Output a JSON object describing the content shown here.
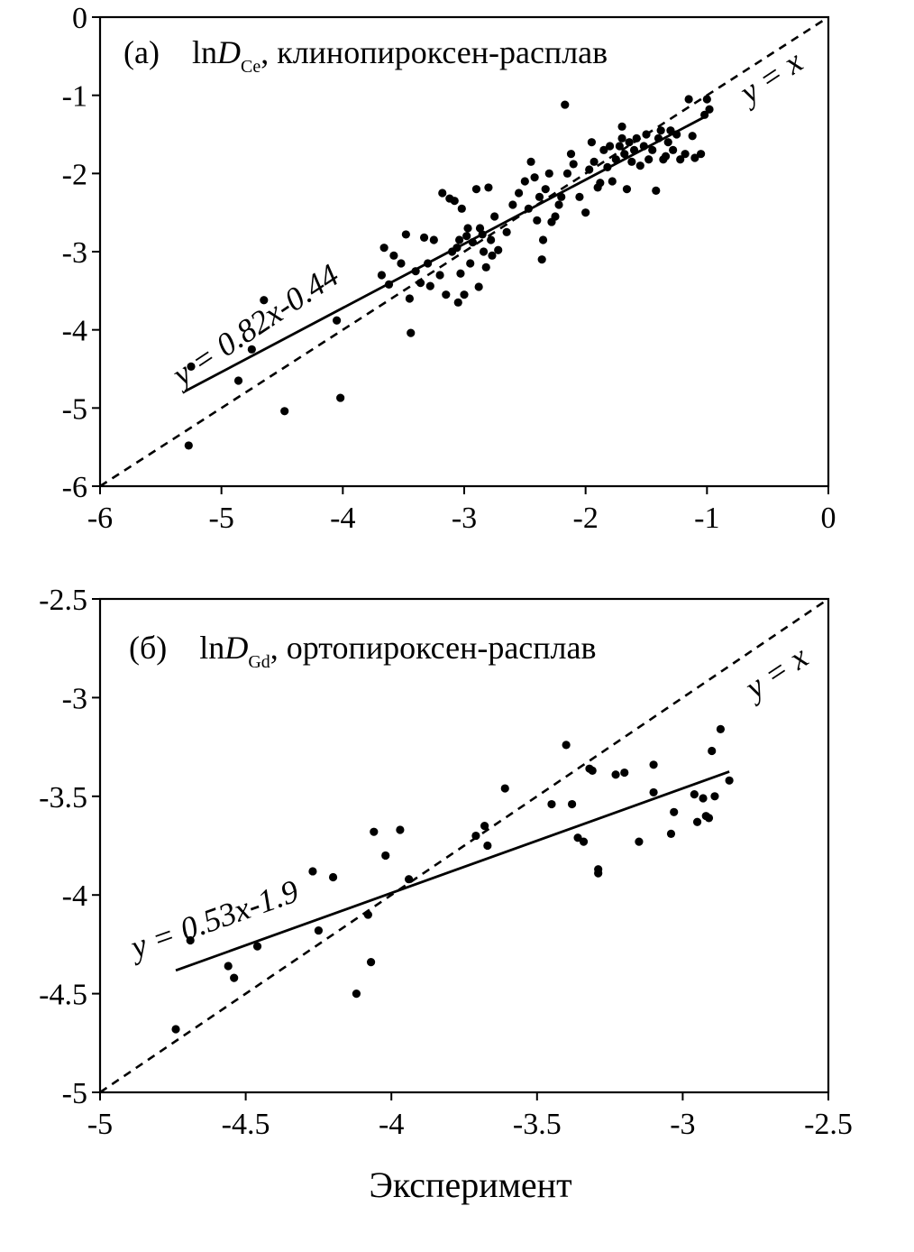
{
  "xlabel": "Эксперимент",
  "chart_data": [
    {
      "type": "scatter",
      "panel": "(a)",
      "title_prefix": "ln",
      "title_var": "D",
      "title_sub": "Ce",
      "title_suffix": ", клинопироксен-расплав",
      "xlim": [
        -6,
        0
      ],
      "ylim": [
        -6,
        0
      ],
      "xticks": [
        "-6",
        "-5",
        "-4",
        "-3",
        "-2",
        "-1",
        "0"
      ],
      "yticks": [
        "0",
        "-1",
        "-2",
        "-3",
        "-4",
        "-5",
        "-6"
      ],
      "identity_label": "y = x",
      "fit_label": "y = 0.82x-0.44",
      "fit": {
        "slope": 0.82,
        "intercept": -0.44,
        "x_range": [
          -5.3,
          -1.0
        ]
      },
      "identity": {
        "x_range": [
          -6,
          0
        ]
      },
      "points": [
        [
          -5.27,
          -5.48
        ],
        [
          -5.25,
          -4.47
        ],
        [
          -4.86,
          -4.65
        ],
        [
          -4.75,
          -4.25
        ],
        [
          -4.65,
          -3.62
        ],
        [
          -4.48,
          -5.04
        ],
        [
          -4.05,
          -3.88
        ],
        [
          -4.02,
          -4.87
        ],
        [
          -3.68,
          -3.3
        ],
        [
          -3.66,
          -2.95
        ],
        [
          -3.62,
          -3.42
        ],
        [
          -3.58,
          -3.05
        ],
        [
          -3.52,
          -3.15
        ],
        [
          -3.48,
          -2.78
        ],
        [
          -3.45,
          -3.6
        ],
        [
          -3.44,
          -4.04
        ],
        [
          -3.4,
          -3.25
        ],
        [
          -3.36,
          -3.4
        ],
        [
          -3.33,
          -2.82
        ],
        [
          -3.3,
          -3.15
        ],
        [
          -3.28,
          -3.44
        ],
        [
          -3.25,
          -2.85
        ],
        [
          -3.2,
          -3.3
        ],
        [
          -3.18,
          -2.25
        ],
        [
          -3.15,
          -3.55
        ],
        [
          -3.12,
          -2.32
        ],
        [
          -3.1,
          -3.0
        ],
        [
          -3.08,
          -2.35
        ],
        [
          -3.06,
          -2.95
        ],
        [
          -3.05,
          -3.65
        ],
        [
          -3.04,
          -2.85
        ],
        [
          -3.03,
          -3.28
        ],
        [
          -3.02,
          -2.45
        ],
        [
          -3.0,
          -3.55
        ],
        [
          -2.98,
          -2.8
        ],
        [
          -2.97,
          -2.7
        ],
        [
          -2.95,
          -3.15
        ],
        [
          -2.93,
          -2.88
        ],
        [
          -2.9,
          -2.2
        ],
        [
          -2.88,
          -3.45
        ],
        [
          -2.87,
          -2.7
        ],
        [
          -2.85,
          -2.78
        ],
        [
          -2.84,
          -3.0
        ],
        [
          -2.82,
          -3.2
        ],
        [
          -2.8,
          -2.18
        ],
        [
          -2.78,
          -2.85
        ],
        [
          -2.77,
          -3.05
        ],
        [
          -2.75,
          -2.55
        ],
        [
          -2.72,
          -2.98
        ],
        [
          -2.65,
          -2.75
        ],
        [
          -2.6,
          -2.4
        ],
        [
          -2.55,
          -2.25
        ],
        [
          -2.5,
          -2.1
        ],
        [
          -2.47,
          -2.45
        ],
        [
          -2.45,
          -1.85
        ],
        [
          -2.42,
          -2.05
        ],
        [
          -2.4,
          -2.6
        ],
        [
          -2.38,
          -2.3
        ],
        [
          -2.36,
          -3.1
        ],
        [
          -2.35,
          -2.85
        ],
        [
          -2.33,
          -2.2
        ],
        [
          -2.3,
          -2.0
        ],
        [
          -2.28,
          -2.62
        ],
        [
          -2.25,
          -2.55
        ],
        [
          -2.22,
          -2.4
        ],
        [
          -2.2,
          -2.3
        ],
        [
          -2.17,
          -1.12
        ],
        [
          -2.15,
          -2.0
        ],
        [
          -2.12,
          -1.75
        ],
        [
          -2.1,
          -1.88
        ],
        [
          -2.05,
          -2.3
        ],
        [
          -2.0,
          -2.5
        ],
        [
          -1.97,
          -1.95
        ],
        [
          -1.95,
          -1.6
        ],
        [
          -1.93,
          -1.85
        ],
        [
          -1.9,
          -2.18
        ],
        [
          -1.88,
          -2.12
        ],
        [
          -1.85,
          -1.7
        ],
        [
          -1.82,
          -1.92
        ],
        [
          -1.8,
          -1.65
        ],
        [
          -1.78,
          -2.1
        ],
        [
          -1.75,
          -1.82
        ],
        [
          -1.72,
          -1.65
        ],
        [
          -1.7,
          -1.55
        ],
        [
          -1.7,
          -1.4
        ],
        [
          -1.68,
          -1.75
        ],
        [
          -1.66,
          -2.2
        ],
        [
          -1.64,
          -1.6
        ],
        [
          -1.62,
          -1.85
        ],
        [
          -1.6,
          -1.7
        ],
        [
          -1.58,
          -1.55
        ],
        [
          -1.55,
          -1.9
        ],
        [
          -1.52,
          -1.65
        ],
        [
          -1.5,
          -1.5
        ],
        [
          -1.48,
          -1.82
        ],
        [
          -1.45,
          -1.7
        ],
        [
          -1.42,
          -2.22
        ],
        [
          -1.4,
          -1.55
        ],
        [
          -1.38,
          -1.45
        ],
        [
          -1.36,
          -1.82
        ],
        [
          -1.34,
          -1.78
        ],
        [
          -1.32,
          -1.6
        ],
        [
          -1.3,
          -1.45
        ],
        [
          -1.28,
          -1.7
        ],
        [
          -1.25,
          -1.5
        ],
        [
          -1.22,
          -1.82
        ],
        [
          -1.18,
          -1.75
        ],
        [
          -1.15,
          -1.05
        ],
        [
          -1.12,
          -1.52
        ],
        [
          -1.1,
          -1.8
        ],
        [
          -1.05,
          -1.75
        ],
        [
          -1.02,
          -1.25
        ],
        [
          -1.0,
          -1.05
        ],
        [
          -0.98,
          -1.18
        ]
      ]
    },
    {
      "type": "scatter",
      "panel": "(б)",
      "title_prefix": "ln",
      "title_var": "D",
      "title_sub": "Gd",
      "title_suffix": ", ортопироксен-расплав",
      "xlim": [
        -5,
        -2.5
      ],
      "ylim": [
        -5,
        -2.5
      ],
      "xticks": [
        "-5",
        "-4.5",
        "-4",
        "-3.5",
        "-3",
        "-2.5"
      ],
      "yticks": [
        "-2.5",
        "-3",
        "-3.5",
        "-4",
        "-4.5",
        "-5"
      ],
      "identity_label": "y = x",
      "fit_label": "y = 0.53x-1.9",
      "fit": {
        "slope": 0.53,
        "intercept": -1.87,
        "x_range": [
          -4.74,
          -2.84
        ]
      },
      "identity": {
        "x_range": [
          -5,
          -2.5
        ]
      },
      "points": [
        [
          -4.74,
          -4.68
        ],
        [
          -4.69,
          -4.23
        ],
        [
          -4.56,
          -4.36
        ],
        [
          -4.54,
          -4.42
        ],
        [
          -4.46,
          -4.26
        ],
        [
          -4.27,
          -3.88
        ],
        [
          -4.25,
          -4.18
        ],
        [
          -4.2,
          -3.91
        ],
        [
          -4.12,
          -4.5
        ],
        [
          -4.08,
          -4.1
        ],
        [
          -4.07,
          -4.34
        ],
        [
          -4.06,
          -3.68
        ],
        [
          -4.02,
          -3.8
        ],
        [
          -3.97,
          -3.67
        ],
        [
          -3.94,
          -3.92
        ],
        [
          -3.71,
          -3.7
        ],
        [
          -3.68,
          -3.65
        ],
        [
          -3.67,
          -3.75
        ],
        [
          -3.61,
          -3.46
        ],
        [
          -3.45,
          -3.54
        ],
        [
          -3.4,
          -3.24
        ],
        [
          -3.38,
          -3.54
        ],
        [
          -3.36,
          -3.71
        ],
        [
          -3.34,
          -3.73
        ],
        [
          -3.32,
          -3.36
        ],
        [
          -3.31,
          -3.37
        ],
        [
          -3.29,
          -3.89
        ],
        [
          -3.29,
          -3.87
        ],
        [
          -3.23,
          -3.39
        ],
        [
          -3.2,
          -3.38
        ],
        [
          -3.15,
          -3.73
        ],
        [
          -3.1,
          -3.34
        ],
        [
          -3.1,
          -3.48
        ],
        [
          -3.04,
          -3.69
        ],
        [
          -3.03,
          -3.58
        ],
        [
          -2.96,
          -3.49
        ],
        [
          -2.95,
          -3.63
        ],
        [
          -2.93,
          -3.51
        ],
        [
          -2.92,
          -3.6
        ],
        [
          -2.91,
          -3.61
        ],
        [
          -2.9,
          -3.27
        ],
        [
          -2.89,
          -3.5
        ],
        [
          -2.87,
          -3.16
        ],
        [
          -2.84,
          -3.42
        ]
      ]
    }
  ]
}
